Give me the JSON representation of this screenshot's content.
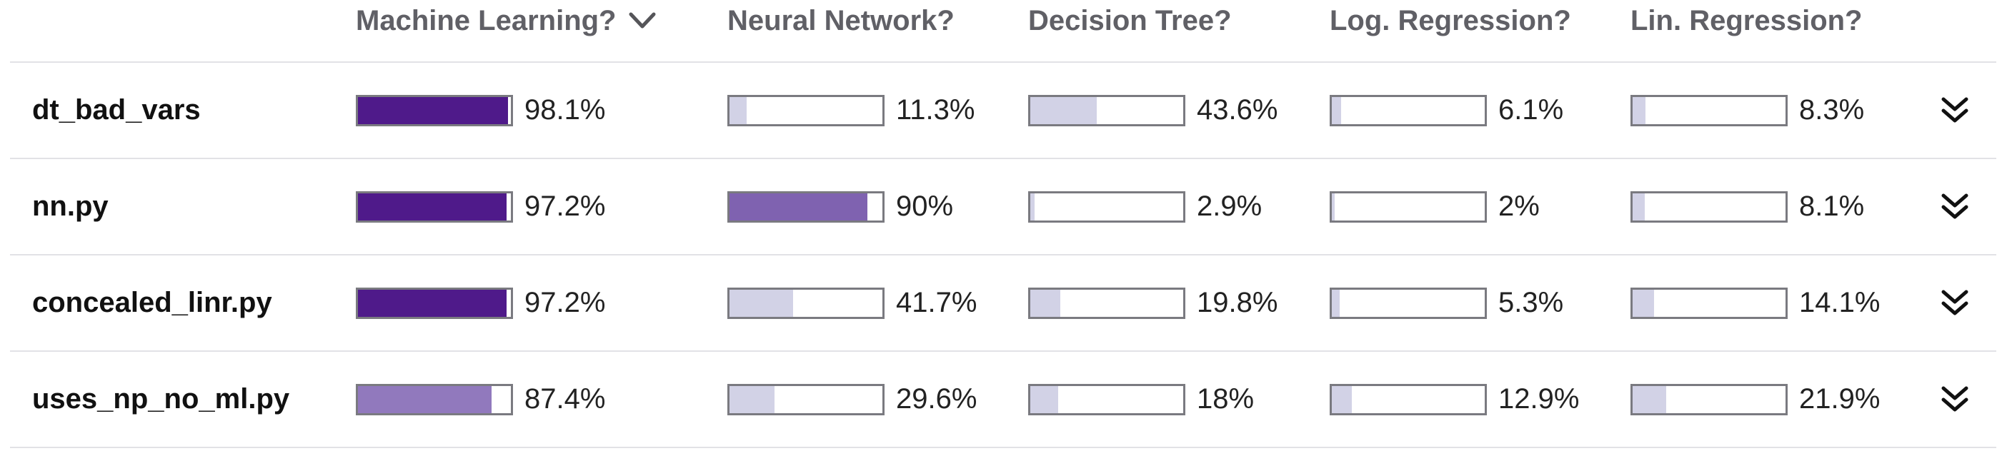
{
  "columns": [
    {
      "label": "Machine Learning?",
      "sorted": true,
      "sort_icon": "chevron-down-icon"
    },
    {
      "label": "Neural Network?"
    },
    {
      "label": "Decision Tree?"
    },
    {
      "label": "Log. Regression?"
    },
    {
      "label": "Lin. Regression?"
    }
  ],
  "rows": [
    {
      "name": "dt_bad_vars",
      "values": [
        {
          "text": "98.1%",
          "value": 0.981
        },
        {
          "text": "11.3%",
          "value": 0.113
        },
        {
          "text": "43.6%",
          "value": 0.436
        },
        {
          "text": "6.1%",
          "value": 0.061
        },
        {
          "text": "8.3%",
          "value": 0.083
        }
      ]
    },
    {
      "name": "nn.py",
      "values": [
        {
          "text": "97.2%",
          "value": 0.972
        },
        {
          "text": "90%",
          "value": 0.9
        },
        {
          "text": "2.9%",
          "value": 0.029
        },
        {
          "text": "2%",
          "value": 0.02
        },
        {
          "text": "8.1%",
          "value": 0.081
        }
      ]
    },
    {
      "name": "concealed_linr.py",
      "values": [
        {
          "text": "97.2%",
          "value": 0.972
        },
        {
          "text": "41.7%",
          "value": 0.417
        },
        {
          "text": "19.8%",
          "value": 0.198
        },
        {
          "text": "5.3%",
          "value": 0.053
        },
        {
          "text": "14.1%",
          "value": 0.141
        }
      ]
    },
    {
      "name": "uses_np_no_ml.py",
      "values": [
        {
          "text": "87.4%",
          "value": 0.874
        },
        {
          "text": "29.6%",
          "value": 0.296
        },
        {
          "text": "18%",
          "value": 0.18
        },
        {
          "text": "12.9%",
          "value": 0.129
        },
        {
          "text": "21.9%",
          "value": 0.219
        }
      ]
    }
  ],
  "row_action_icon": "double-chevron-down-icon",
  "colors": {
    "high": "#4f1a8a",
    "medium": "#7f62b0",
    "medium_light": "#9179bd",
    "low": "#d2d2e6",
    "bar_border": "#7a7a80",
    "header_text": "#606066",
    "divider": "#e2e2e6"
  }
}
